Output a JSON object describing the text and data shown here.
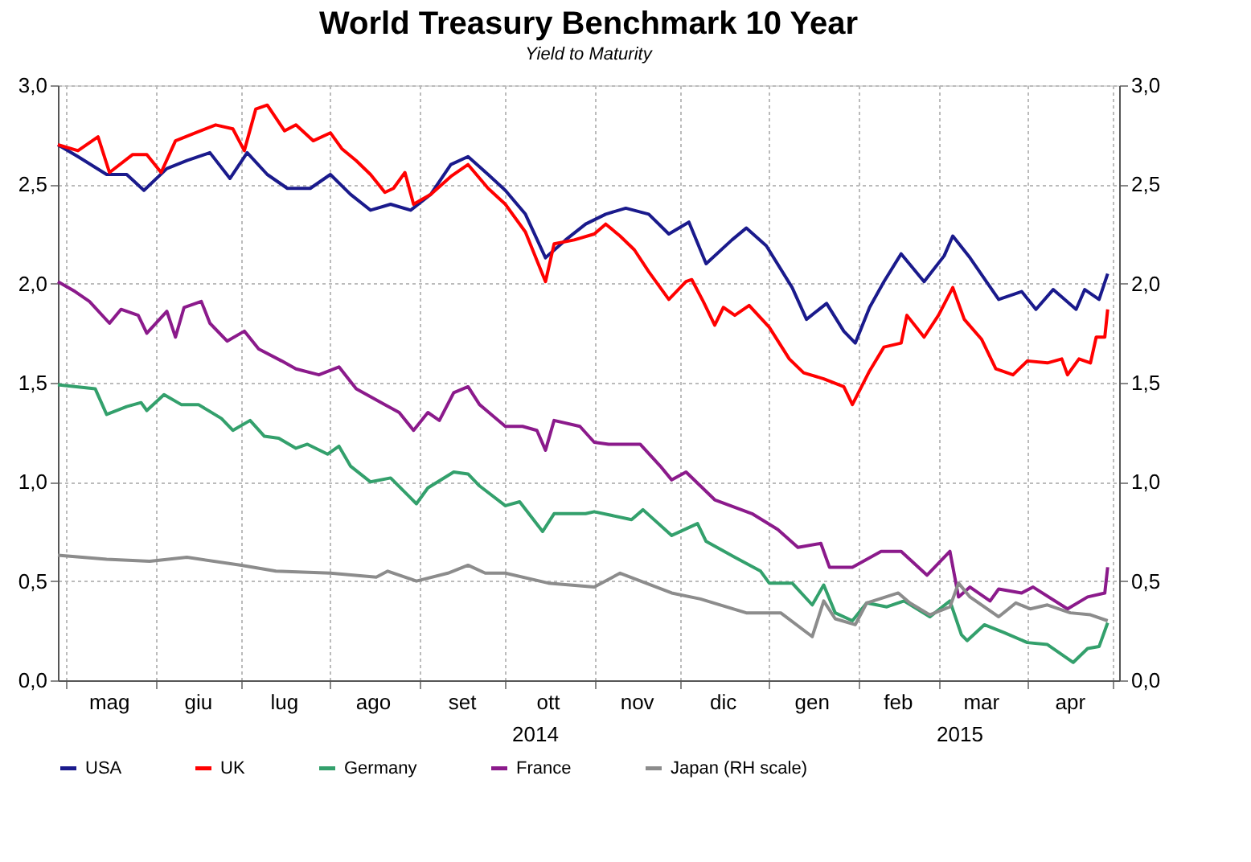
{
  "chart_data": {
    "type": "line",
    "title": "World Treasury Benchmark 10 Year",
    "subtitle": "Yield to Maturity",
    "xlim": [
      "2014-04-28",
      "2015-05-03"
    ],
    "xticks": [
      {
        "value": "2014-05-01",
        "label": null
      },
      {
        "value": "2014-05-16",
        "label": "mag"
      },
      {
        "value": "2014-06-01",
        "label": null
      },
      {
        "value": "2014-06-16",
        "label": "giu"
      },
      {
        "value": "2014-07-01",
        "label": null
      },
      {
        "value": "2014-07-16",
        "label": "lug"
      },
      {
        "value": "2014-08-01",
        "label": null
      },
      {
        "value": "2014-08-16",
        "label": "ago"
      },
      {
        "value": "2014-09-01",
        "label": null
      },
      {
        "value": "2014-09-16",
        "label": "set"
      },
      {
        "value": "2014-10-01",
        "label": null
      },
      {
        "value": "2014-10-16",
        "label": "ott"
      },
      {
        "value": "2014-11-01",
        "label": null
      },
      {
        "value": "2014-11-16",
        "label": "nov"
      },
      {
        "value": "2014-12-01",
        "label": null
      },
      {
        "value": "2014-12-16",
        "label": "dic"
      },
      {
        "value": "2015-01-01",
        "label": null
      },
      {
        "value": "2015-01-16",
        "label": "gen"
      },
      {
        "value": "2015-02-01",
        "label": null
      },
      {
        "value": "2015-02-15",
        "label": "feb"
      },
      {
        "value": "2015-03-01",
        "label": null
      },
      {
        "value": "2015-03-16",
        "label": "mar"
      },
      {
        "value": "2015-04-01",
        "label": null
      },
      {
        "value": "2015-04-16",
        "label": "apr"
      },
      {
        "value": "2015-05-01",
        "label": null
      }
    ],
    "ylim": [
      0,
      3
    ],
    "yticks": [
      {
        "value": 0,
        "label": "0,0"
      },
      {
        "value": 0.5,
        "label": "0,5"
      },
      {
        "value": 1,
        "label": "1,0"
      },
      {
        "value": 1.5,
        "label": "1,5"
      },
      {
        "value": 2,
        "label": "2,0"
      },
      {
        "value": 2.5,
        "label": "2,5"
      },
      {
        "value": 3,
        "label": "3,0"
      }
    ],
    "y2lim": [
      0,
      3
    ],
    "y2ticks": [
      {
        "value": 0,
        "label": "0,0"
      },
      {
        "value": 0.5,
        "label": "0,5"
      },
      {
        "value": 1,
        "label": "1,0"
      },
      {
        "value": 1.5,
        "label": "1,5"
      },
      {
        "value": 2,
        "label": "2,0"
      },
      {
        "value": 2.5,
        "label": "2,5"
      },
      {
        "value": 3,
        "label": "3,0"
      }
    ],
    "grid": true,
    "legend": "bottom",
    "annotations": [
      "2014",
      "2015"
    ],
    "series": [
      {
        "name": "USA",
        "color": "#1a1a8c",
        "x": [
          "2014-04-28",
          "2014-05-05",
          "2014-05-15",
          "2014-05-22",
          "2014-05-28",
          "2014-06-05",
          "2014-06-12",
          "2014-06-20",
          "2014-06-27",
          "2014-07-03",
          "2014-07-10",
          "2014-07-17",
          "2014-07-25",
          "2014-08-01",
          "2014-08-08",
          "2014-08-15",
          "2014-08-22",
          "2014-08-29",
          "2014-09-05",
          "2014-09-12",
          "2014-09-18",
          "2014-09-25",
          "2014-10-01",
          "2014-10-08",
          "2014-10-15",
          "2014-10-22",
          "2014-10-29",
          "2014-11-05",
          "2014-11-12",
          "2014-11-20",
          "2014-11-27",
          "2014-12-04",
          "2014-12-10",
          "2014-12-19",
          "2014-12-24",
          "2014-12-31",
          "2015-01-09",
          "2015-01-14",
          "2015-01-21",
          "2015-01-27",
          "2015-01-31",
          "2015-02-05",
          "2015-02-10",
          "2015-02-16",
          "2015-02-24",
          "2015-03-03",
          "2015-03-06",
          "2015-03-12",
          "2015-03-22",
          "2015-03-30",
          "2015-04-04",
          "2015-04-10",
          "2015-04-18",
          "2015-04-21",
          "2015-04-26",
          "2015-04-29"
        ],
        "values": [
          2.7,
          2.64,
          2.55,
          2.55,
          2.47,
          2.58,
          2.62,
          2.66,
          2.53,
          2.66,
          2.55,
          2.48,
          2.48,
          2.55,
          2.45,
          2.37,
          2.4,
          2.37,
          2.45,
          2.6,
          2.64,
          2.55,
          2.47,
          2.35,
          2.13,
          2.22,
          2.3,
          2.35,
          2.38,
          2.35,
          2.25,
          2.31,
          2.1,
          2.22,
          2.28,
          2.19,
          1.98,
          1.82,
          1.9,
          1.76,
          1.7,
          1.88,
          2.01,
          2.15,
          2.01,
          2.14,
          2.24,
          2.13,
          1.92,
          1.96,
          1.87,
          1.97,
          1.87,
          1.97,
          1.92,
          2.05
        ]
      },
      {
        "name": "UK",
        "color": "#ff0000",
        "x": [
          "2014-04-28",
          "2014-05-05",
          "2014-05-12",
          "2014-05-16",
          "2014-05-24",
          "2014-05-29",
          "2014-06-03",
          "2014-06-08",
          "2014-06-15",
          "2014-06-22",
          "2014-06-28",
          "2014-07-02",
          "2014-07-06",
          "2014-07-10",
          "2014-07-16",
          "2014-07-20",
          "2014-07-26",
          "2014-08-01",
          "2014-08-05",
          "2014-08-10",
          "2014-08-15",
          "2014-08-20",
          "2014-08-23",
          "2014-08-27",
          "2014-08-30",
          "2014-09-05",
          "2014-09-12",
          "2014-09-18",
          "2014-09-25",
          "2014-10-01",
          "2014-10-08",
          "2014-10-15",
          "2014-10-18",
          "2014-10-25",
          "2014-11-01",
          "2014-11-05",
          "2014-11-10",
          "2014-11-15",
          "2014-11-20",
          "2014-11-27",
          "2014-12-03",
          "2014-12-05",
          "2014-12-09",
          "2014-12-13",
          "2014-12-16",
          "2014-12-20",
          "2014-12-25",
          "2015-01-01",
          "2015-01-08",
          "2015-01-13",
          "2015-01-20",
          "2015-01-27",
          "2015-01-30",
          "2015-02-05",
          "2015-02-10",
          "2015-02-16",
          "2015-02-18",
          "2015-02-24",
          "2015-03-01",
          "2015-03-06",
          "2015-03-10",
          "2015-03-16",
          "2015-03-21",
          "2015-03-27",
          "2015-04-01",
          "2015-04-08",
          "2015-04-13",
          "2015-04-15",
          "2015-04-19",
          "2015-04-23",
          "2015-04-25",
          "2015-04-28",
          "2015-04-29"
        ],
        "values": [
          2.7,
          2.67,
          2.74,
          2.56,
          2.65,
          2.65,
          2.56,
          2.72,
          2.76,
          2.8,
          2.78,
          2.67,
          2.88,
          2.9,
          2.77,
          2.8,
          2.72,
          2.76,
          2.68,
          2.62,
          2.55,
          2.46,
          2.48,
          2.56,
          2.4,
          2.45,
          2.54,
          2.6,
          2.48,
          2.4,
          2.26,
          2.01,
          2.2,
          2.22,
          2.25,
          2.3,
          2.24,
          2.17,
          2.06,
          1.92,
          2.01,
          2.02,
          1.91,
          1.79,
          1.88,
          1.84,
          1.89,
          1.78,
          1.62,
          1.55,
          1.52,
          1.48,
          1.39,
          1.56,
          1.68,
          1.7,
          1.84,
          1.73,
          1.84,
          1.98,
          1.82,
          1.72,
          1.57,
          1.54,
          1.61,
          1.6,
          1.62,
          1.54,
          1.62,
          1.6,
          1.73,
          1.73,
          1.87
        ]
      },
      {
        "name": "Germany",
        "color": "#33a06c",
        "x": [
          "2014-04-28",
          "2014-05-11",
          "2014-05-15",
          "2014-05-22",
          "2014-05-27",
          "2014-05-29",
          "2014-06-04",
          "2014-06-10",
          "2014-06-16",
          "2014-06-24",
          "2014-06-28",
          "2014-07-04",
          "2014-07-09",
          "2014-07-14",
          "2014-07-20",
          "2014-07-24",
          "2014-07-31",
          "2014-08-04",
          "2014-08-08",
          "2014-08-15",
          "2014-08-22",
          "2014-08-31",
          "2014-09-04",
          "2014-09-13",
          "2014-09-18",
          "2014-09-22",
          "2014-10-01",
          "2014-10-06",
          "2014-10-14",
          "2014-10-18",
          "2014-10-29",
          "2014-11-01",
          "2014-11-14",
          "2014-11-18",
          "2014-11-28",
          "2014-12-07",
          "2014-12-10",
          "2014-12-20",
          "2014-12-29",
          "2015-01-01",
          "2015-01-09",
          "2015-01-16",
          "2015-01-20",
          "2015-01-24",
          "2015-01-30",
          "2015-02-04",
          "2015-02-11",
          "2015-02-17",
          "2015-02-26",
          "2015-03-05",
          "2015-03-09",
          "2015-03-11",
          "2015-03-17",
          "2015-03-24",
          "2015-04-01",
          "2015-04-08",
          "2015-04-17",
          "2015-04-22",
          "2015-04-26",
          "2015-04-29"
        ],
        "values": [
          1.49,
          1.47,
          1.34,
          1.38,
          1.4,
          1.36,
          1.44,
          1.39,
          1.39,
          1.32,
          1.26,
          1.31,
          1.23,
          1.22,
          1.17,
          1.19,
          1.14,
          1.18,
          1.08,
          1.0,
          1.02,
          0.89,
          0.97,
          1.05,
          1.04,
          0.98,
          0.88,
          0.9,
          0.75,
          0.84,
          0.84,
          0.85,
          0.81,
          0.86,
          0.73,
          0.79,
          0.7,
          0.62,
          0.55,
          0.49,
          0.49,
          0.38,
          0.48,
          0.34,
          0.3,
          0.39,
          0.37,
          0.4,
          0.32,
          0.4,
          0.23,
          0.2,
          0.28,
          0.24,
          0.19,
          0.18,
          0.09,
          0.16,
          0.17,
          0.29
        ]
      },
      {
        "name": "France",
        "color": "#8b1a8b",
        "x": [
          "2014-04-28",
          "2014-05-04",
          "2014-05-09",
          "2014-05-16",
          "2014-05-20",
          "2014-05-26",
          "2014-05-29",
          "2014-06-05",
          "2014-06-08",
          "2014-06-11",
          "2014-06-17",
          "2014-06-20",
          "2014-06-26",
          "2014-07-02",
          "2014-07-07",
          "2014-07-15",
          "2014-07-20",
          "2014-07-28",
          "2014-08-04",
          "2014-08-10",
          "2014-08-20",
          "2014-08-25",
          "2014-08-30",
          "2014-09-04",
          "2014-09-08",
          "2014-09-13",
          "2014-09-18",
          "2014-09-22",
          "2014-10-01",
          "2014-10-07",
          "2014-10-12",
          "2014-10-15",
          "2014-10-18",
          "2014-10-27",
          "2014-11-01",
          "2014-11-06",
          "2014-11-17",
          "2014-11-24",
          "2014-11-28",
          "2014-12-03",
          "2014-12-13",
          "2014-12-26",
          "2015-01-04",
          "2015-01-11",
          "2015-01-19",
          "2015-01-22",
          "2015-01-30",
          "2015-02-09",
          "2015-02-16",
          "2015-02-25",
          "2015-03-05",
          "2015-03-08",
          "2015-03-12",
          "2015-03-19",
          "2015-03-22",
          "2015-03-30",
          "2015-04-03",
          "2015-04-15",
          "2015-04-22",
          "2015-04-28",
          "2015-04-29"
        ],
        "values": [
          2.01,
          1.96,
          1.91,
          1.8,
          1.87,
          1.84,
          1.75,
          1.86,
          1.73,
          1.88,
          1.91,
          1.8,
          1.71,
          1.76,
          1.67,
          1.61,
          1.57,
          1.54,
          1.58,
          1.47,
          1.39,
          1.35,
          1.26,
          1.35,
          1.31,
          1.45,
          1.48,
          1.39,
          1.28,
          1.28,
          1.26,
          1.16,
          1.31,
          1.28,
          1.2,
          1.19,
          1.19,
          1.08,
          1.01,
          1.05,
          0.91,
          0.84,
          0.76,
          0.67,
          0.69,
          0.57,
          0.57,
          0.65,
          0.65,
          0.53,
          0.65,
          0.42,
          0.47,
          0.4,
          0.46,
          0.44,
          0.47,
          0.36,
          0.42,
          0.44,
          0.57
        ]
      },
      {
        "name": "Japan (RH scale)",
        "color": "#8c8c8c",
        "axis": "y2",
        "x": [
          "2014-04-28",
          "2014-05-15",
          "2014-05-30",
          "2014-06-12",
          "2014-07-01",
          "2014-07-13",
          "2014-08-01",
          "2014-08-17",
          "2014-08-21",
          "2014-08-31",
          "2014-09-11",
          "2014-09-18",
          "2014-09-24",
          "2014-10-01",
          "2014-10-16",
          "2014-11-01",
          "2014-11-10",
          "2014-11-28",
          "2014-12-08",
          "2014-12-24",
          "2015-01-05",
          "2015-01-16",
          "2015-01-20",
          "2015-01-24",
          "2015-01-31",
          "2015-02-04",
          "2015-02-15",
          "2015-02-19",
          "2015-02-26",
          "2015-03-05",
          "2015-03-08",
          "2015-03-12",
          "2015-03-22",
          "2015-03-28",
          "2015-04-02",
          "2015-04-08",
          "2015-04-16",
          "2015-04-23",
          "2015-04-29"
        ],
        "values": [
          0.63,
          0.61,
          0.6,
          0.62,
          0.58,
          0.55,
          0.54,
          0.52,
          0.55,
          0.5,
          0.54,
          0.58,
          0.54,
          0.54,
          0.49,
          0.47,
          0.54,
          0.44,
          0.41,
          0.34,
          0.34,
          0.22,
          0.4,
          0.31,
          0.28,
          0.39,
          0.44,
          0.39,
          0.33,
          0.37,
          0.49,
          0.42,
          0.32,
          0.39,
          0.36,
          0.38,
          0.34,
          0.33,
          0.3
        ]
      }
    ]
  }
}
